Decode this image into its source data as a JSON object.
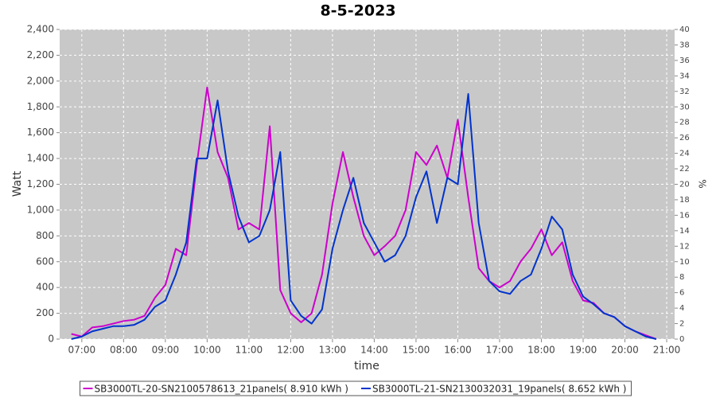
{
  "chart_data": {
    "type": "line",
    "title": "8-5-2023",
    "xlabel": "time",
    "ylabel": "Watt",
    "y2label": "%",
    "x": [
      6.75,
      7.0,
      7.25,
      7.5,
      7.75,
      8.0,
      8.25,
      8.5,
      8.75,
      9.0,
      9.25,
      9.5,
      9.75,
      10.0,
      10.25,
      10.5,
      10.75,
      11.0,
      11.25,
      11.5,
      11.75,
      12.0,
      12.25,
      12.5,
      12.75,
      13.0,
      13.25,
      13.5,
      13.75,
      14.0,
      14.25,
      14.5,
      14.75,
      15.0,
      15.25,
      15.5,
      15.75,
      16.0,
      16.25,
      16.5,
      16.75,
      17.0,
      17.25,
      17.5,
      17.75,
      18.0,
      18.25,
      18.5,
      18.75,
      19.0,
      19.25,
      19.5,
      19.75,
      20.0,
      20.25,
      20.5,
      20.75
    ],
    "series": [
      {
        "name": "SB3000TL-20-SN2100578613_21panels( 8.910 kWh )",
        "color": "#cc00cc",
        "values": [
          40,
          20,
          90,
          100,
          120,
          140,
          150,
          180,
          320,
          420,
          700,
          650,
          1350,
          1950,
          1450,
          1250,
          850,
          900,
          850,
          1650,
          380,
          200,
          130,
          200,
          500,
          1050,
          1450,
          1100,
          800,
          650,
          720,
          800,
          1000,
          1450,
          1350,
          1500,
          1250,
          1700,
          1100,
          550,
          450,
          400,
          450,
          600,
          700,
          850,
          650,
          750,
          450,
          300,
          280,
          200,
          170,
          100,
          60,
          30,
          0
        ]
      },
      {
        "name": "SB3000TL-21-SN2130032031_19panels( 8.652 kWh )",
        "color": "#0033cc",
        "values": [
          0,
          20,
          60,
          80,
          100,
          100,
          110,
          150,
          250,
          300,
          500,
          750,
          1400,
          1400,
          1850,
          1300,
          950,
          750,
          800,
          1000,
          1450,
          300,
          180,
          120,
          230,
          700,
          1000,
          1250,
          900,
          750,
          600,
          650,
          800,
          1100,
          1300,
          900,
          1250,
          1200,
          1900,
          900,
          450,
          370,
          350,
          450,
          500,
          700,
          950,
          850,
          500,
          330,
          270,
          200,
          170,
          100,
          60,
          20,
          0
        ]
      }
    ],
    "xlim": [
      6.47,
      21.19
    ],
    "xticks": [
      {
        "value": 7,
        "label": "07:00"
      },
      {
        "value": 8,
        "label": "08:00"
      },
      {
        "value": 9,
        "label": "09:00"
      },
      {
        "value": 10,
        "label": "10:00"
      },
      {
        "value": 11,
        "label": "11:00"
      },
      {
        "value": 12,
        "label": "12:00"
      },
      {
        "value": 13,
        "label": "13:00"
      },
      {
        "value": 14,
        "label": "14:00"
      },
      {
        "value": 15,
        "label": "15:00"
      },
      {
        "value": 16,
        "label": "16:00"
      },
      {
        "value": 17,
        "label": "17:00"
      },
      {
        "value": 18,
        "label": "18:00"
      },
      {
        "value": 19,
        "label": "19:00"
      },
      {
        "value": 20,
        "label": "20:00"
      },
      {
        "value": 21,
        "label": "21:00"
      }
    ],
    "ylim": [
      0,
      2400
    ],
    "yticks": [
      0,
      200,
      400,
      600,
      800,
      {
        "value": 1000,
        "label": "1,000"
      },
      {
        "value": 1200,
        "label": "1,200"
      },
      {
        "value": 1400,
        "label": "1,400"
      },
      {
        "value": 1600,
        "label": "1,600"
      },
      {
        "value": 1800,
        "label": "1,800"
      },
      {
        "value": 2000,
        "label": "2,000"
      },
      {
        "value": 2200,
        "label": "2,200"
      },
      {
        "value": 2400,
        "label": "2,400"
      }
    ],
    "y2lim": [
      0,
      40
    ],
    "y2ticks": [
      0,
      2,
      4,
      6,
      8,
      10,
      12,
      14,
      16,
      18,
      20,
      22,
      24,
      26,
      28,
      30,
      32,
      34,
      36,
      38,
      40
    ],
    "grid": true,
    "legend": "bottom"
  }
}
